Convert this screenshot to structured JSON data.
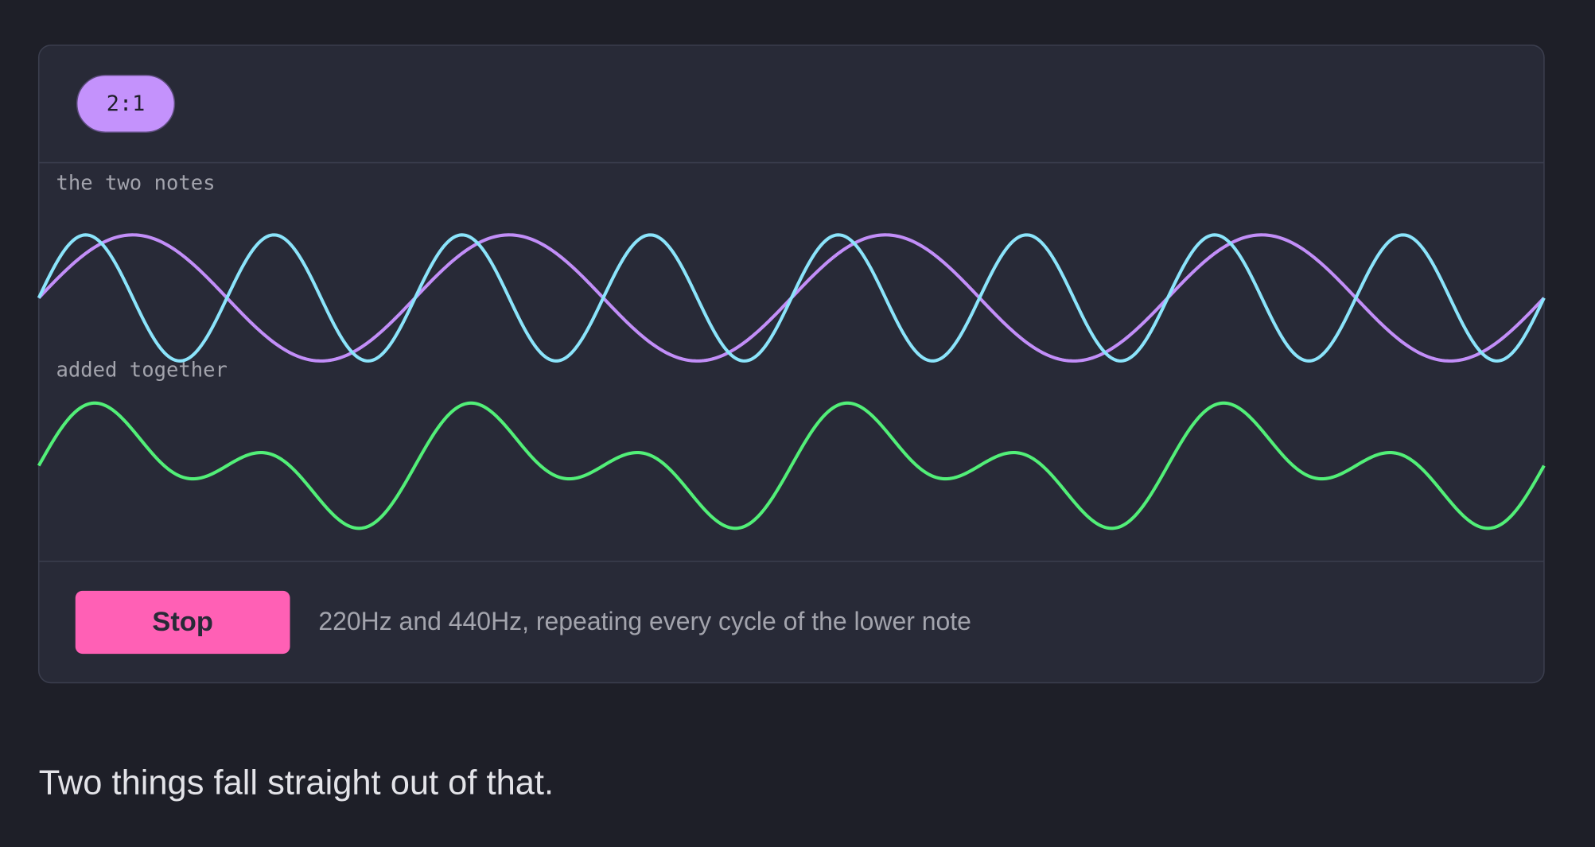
{
  "ratio_button": "2:1",
  "panels": {
    "notes_label": "the two notes",
    "sum_label": "added together"
  },
  "controls": {
    "stop_button": "Stop",
    "caption": "220Hz and 440Hz, repeating every cycle of the lower note"
  },
  "paragraph": "Two things fall straight out of that."
}
